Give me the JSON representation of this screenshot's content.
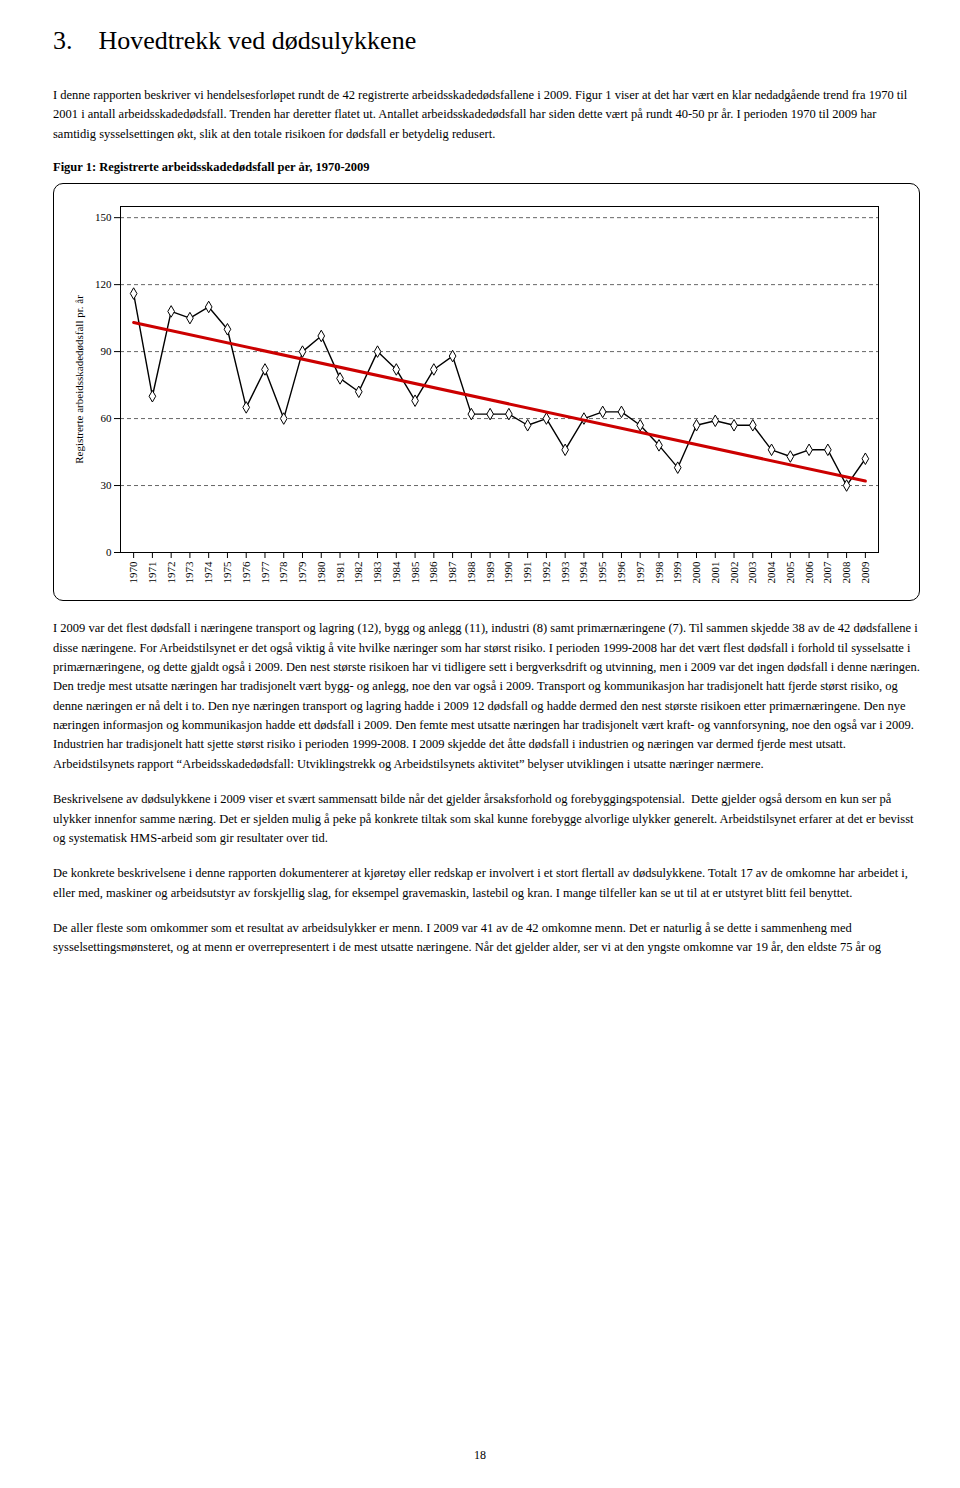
{
  "heading": "3. Hovedtrekk ved dødsulykkene",
  "text_before": [
    "I denne rapporten beskriver vi hendelsesforløpet rundt de 42 registrerte arbeidsskadedødsfallene i 2009. Figur 1 viser at det har vært en klar nedadgående trend fra 1970 til 2001 i antall arbeidsskadedødsfall. Trenden har deretter flatet ut. Antallet arbeidsskadedødsfall har siden dette vært på rundt 40-50 pr år. I perioden 1970 til 2009 har samtidig sysselsettingen økt, slik at den totale risikoen for dødsfall er betydelig redusert."
  ],
  "chart_data": {
    "type": "line",
    "title": "Figur 1: Registrerte arbeidsskadedødsfall per år, 1970-2009",
    "ylabel": "Registrerte arbeidsskadedødsfall pr. år",
    "series": [
      {
        "color": "#000000",
        "marker": "diamond",
        "x": [
          1970,
          1971,
          1972,
          1973,
          1974,
          1975,
          1976,
          1977,
          1978,
          1979,
          1980,
          1981,
          1982,
          1983,
          1984,
          1985,
          1986,
          1987,
          1988,
          1989,
          1990,
          1991,
          1992,
          1993,
          1994,
          1995,
          1996,
          1997,
          1998,
          1999,
          2000,
          2001,
          2002,
          2003,
          2004,
          2005,
          2006,
          2007,
          2008,
          2009
        ],
        "values": [
          116,
          70,
          108,
          105,
          110,
          100,
          65,
          82,
          60,
          90,
          97,
          78,
          72,
          90,
          82,
          68,
          82,
          88,
          62,
          62,
          62,
          57,
          60,
          46,
          60,
          63,
          63,
          57,
          48,
          38,
          57,
          59,
          57,
          57,
          46,
          43,
          46,
          46,
          30,
          42
        ]
      },
      {
        "color": "#cc0000",
        "x": [
          1970,
          2009
        ],
        "values": [
          103,
          32
        ]
      }
    ],
    "xlim": [
      1969.3,
      2009.7
    ],
    "xticks": [
      1970,
      1971,
      1972,
      1973,
      1974,
      1975,
      1976,
      1977,
      1978,
      1979,
      1980,
      1981,
      1982,
      1983,
      1984,
      1985,
      1986,
      1987,
      1988,
      1989,
      1990,
      1991,
      1992,
      1993,
      1994,
      1995,
      1996,
      1997,
      1998,
      1999,
      2000,
      2001,
      2002,
      2003,
      2004,
      2005,
      2006,
      2007,
      2008,
      2009
    ],
    "ylim": [
      0,
      155
    ],
    "yticks": [
      0,
      30,
      60,
      90,
      120,
      150
    ],
    "grid": true
  },
  "text_after": [
    "I 2009 var det flest dødsfall i næringene transport og lagring (12), bygg og anlegg (11), industri (8) samt primærnæringene (7). Til sammen skjedde 38 av de 42 dødsfallene i disse næringene. For Arbeidstilsynet er det også viktig å vite hvilke næringer som har størst risiko. I perioden 1999-2008 har det vært flest dødsfall i forhold til sysselsatte i primærnæringene, og dette gjaldt også i 2009. Den nest største risikoen har vi tidligere sett i bergverksdrift og utvinning, men i 2009 var det ingen dødsfall i denne næringen. Den tredje mest utsatte næringen har tradisjonelt vært bygg- og anlegg, noe den var også i 2009. Transport og kommunikasjon har tradisjonelt hatt fjerde størst risiko, og denne næringen er nå delt i to. Den nye næringen transport og lagring hadde i 2009 12 dødsfall og hadde dermed den nest største risikoen etter primærnæringene. Den nye næringen informasjon og kommunikasjon hadde ett dødsfall i 2009. Den femte mest utsatte næringen har tradisjonelt vært kraft- og vannforsyning, noe den også var i 2009. Industrien har tradisjonelt hatt sjette størst risiko i perioden 1999-2008. I 2009 skjedde det åtte dødsfall i industrien og næringen var dermed fjerde mest utsatt. Arbeidstilsynets rapport “Arbeidsskadedødsfall: Utviklingstrekk og Arbeidstilsynets aktivitet” belyser utviklingen i utsatte næringer nærmere.",
    "Beskrivelsene av dødsulykkene i 2009 viser et svært sammensatt bilde når det gjelder årsaksforhold og forebyggingspotensial.  Dette gjelder også dersom en kun ser på ulykker innenfor samme næring. Det er sjelden mulig å peke på konkrete tiltak som skal kunne forebygge alvorlige ulykker generelt. Arbeidstilsynet erfarer at det er bevisst og systematisk HMS-arbeid som gir resultater over tid.",
    "De konkrete beskrivelsene i denne rapporten dokumenterer at kjøretøy eller redskap er involvert i et stort flertall av dødsulykkene. Totalt 17 av de omkomne har arbeidet i, eller med, maskiner og arbeidsutstyr av forskjellig slag, for eksempel gravemaskin, lastebil og kran. I mange tilfeller kan se ut til at er utstyret blitt feil benyttet.",
    "De aller fleste som omkommer som et resultat av arbeidsulykker er menn. I 2009 var 41 av de 42 omkomne menn. Det er naturlig å se dette i sammenheng med sysselsettingsmønsteret, og at menn er overrepresentert i de mest utsatte næringene. Når det gjelder alder, ser vi at den yngste omkomne var 19 år, den eldste 75 år og"
  ],
  "page_number": "18"
}
